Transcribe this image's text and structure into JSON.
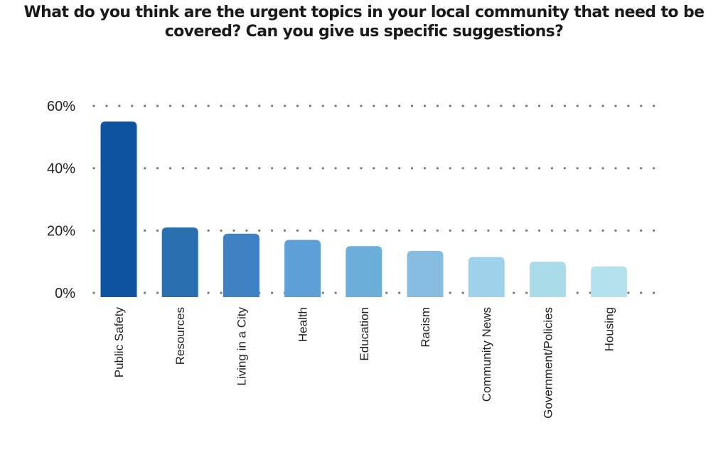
{
  "chart_data": {
    "type": "bar",
    "title": "What do you think are the urgent topics in your local community that need to be\ncovered? Can you give us specific suggestions?",
    "categories": [
      "Public Safety",
      "Resources",
      "Living in a City",
      "Health",
      "Education",
      "Racism",
      "Community News",
      "Government/Policies",
      "Housing"
    ],
    "values": [
      55,
      21,
      19,
      17,
      15,
      13.5,
      11.5,
      10,
      8.5
    ],
    "unit": "%",
    "ylim": [
      0,
      60
    ],
    "yticks": [
      {
        "value": 0,
        "label": "0%"
      },
      {
        "value": 20,
        "label": "20%"
      },
      {
        "value": 40,
        "label": "40%"
      },
      {
        "value": 60,
        "label": "60%"
      }
    ],
    "grid": "dotted horizontal",
    "legend": "none",
    "colors": [
      "#0d539f",
      "#2a6faf",
      "#3e82c4",
      "#5d9fd6",
      "#6aaed9",
      "#86bde0",
      "#9dd2ea",
      "#a9dbe9",
      "#b3e2ee"
    ]
  }
}
